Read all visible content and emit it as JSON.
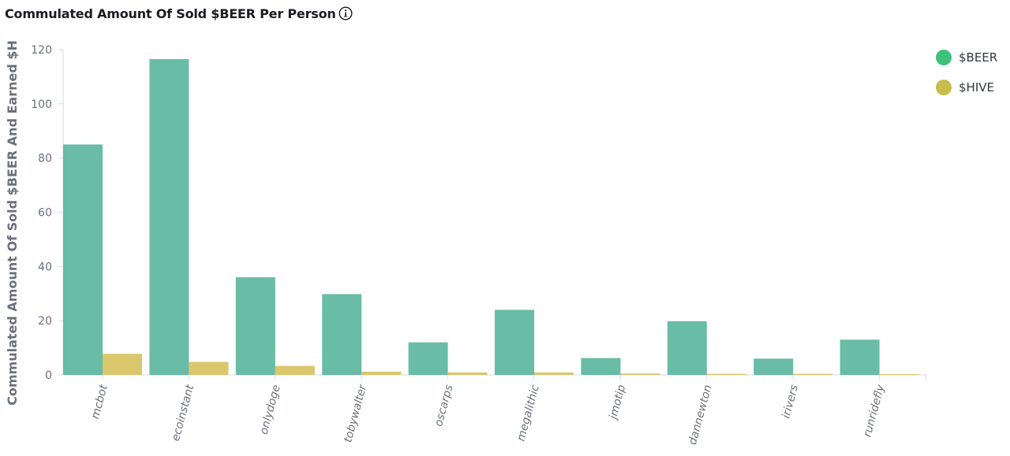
{
  "title": "Commulated Amount Of Sold $BEER Per Person",
  "info_icon": "info-icon",
  "chart_data": {
    "type": "bar",
    "title": "Commulated Amount Of Sold $BEER Per Person",
    "ylabel": "Commulated Amount Of Sold $BEER And Earned $H",
    "xlabel": "",
    "ylim": [
      0,
      120
    ],
    "yticks": [
      0,
      20,
      40,
      60,
      80,
      100,
      120
    ],
    "grid": false,
    "legend_position": "top-right",
    "categories": [
      "mcbot",
      "ecoinstant",
      "onlydoge",
      "tobywalter",
      "oscarps",
      "megalithic",
      "jmotip",
      "dannewton",
      "irivers",
      "runridefly"
    ],
    "series": [
      {
        "name": "$BEER",
        "color": "#54b399",
        "values": [
          85,
          116.5,
          36,
          29.8,
          12,
          24,
          6.2,
          19.8,
          6,
          13
        ]
      },
      {
        "name": "$HIVE",
        "color": "#d6bf57",
        "values": [
          7.8,
          4.8,
          3.3,
          1.2,
          0.9,
          0.9,
          0.5,
          0.4,
          0.4,
          0.3
        ]
      }
    ]
  }
}
